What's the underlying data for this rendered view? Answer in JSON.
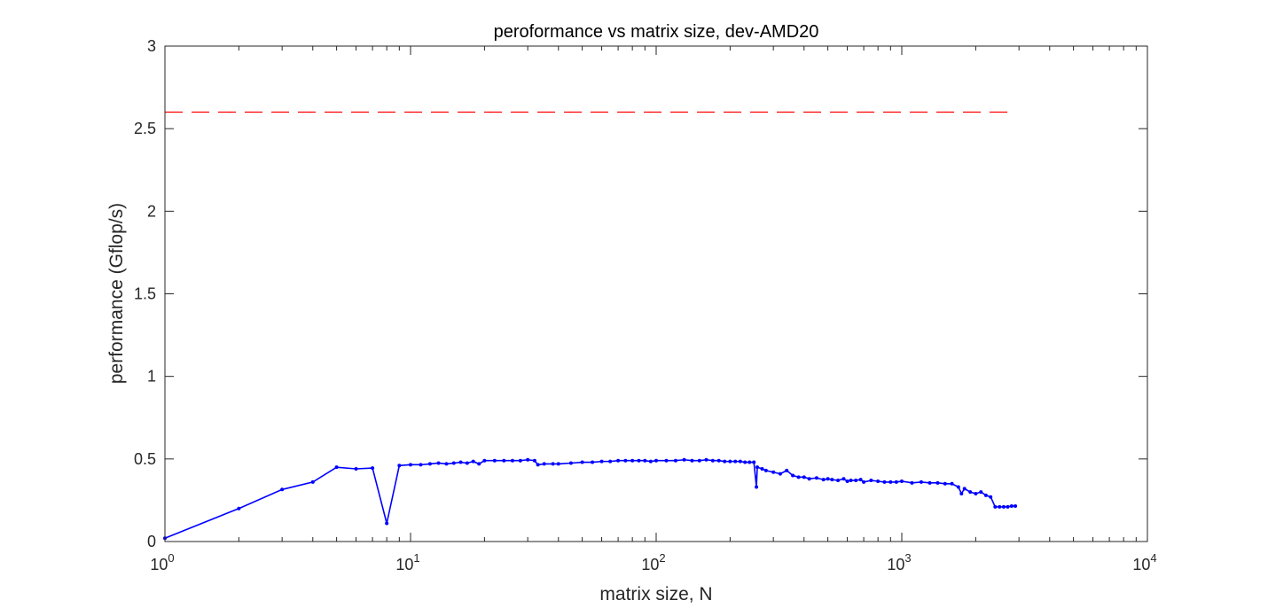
{
  "chart_data": {
    "type": "line",
    "title": "peroformance vs matrix size, dev-AMD20",
    "xlabel": "matrix size, N",
    "ylabel": "performance (Gflop/s)",
    "xscale": "log",
    "xlim": [
      1,
      10000
    ],
    "ylim": [
      0,
      3
    ],
    "x_ticks": [
      {
        "value": 1,
        "base": "10",
        "exp": "0"
      },
      {
        "value": 10,
        "base": "10",
        "exp": "1"
      },
      {
        "value": 100,
        "base": "10",
        "exp": "2"
      },
      {
        "value": 1000,
        "base": "10",
        "exp": "3"
      },
      {
        "value": 10000,
        "base": "10",
        "exp": "4"
      }
    ],
    "y_ticks": [
      {
        "value": 0,
        "label": "0"
      },
      {
        "value": 0.5,
        "label": "0.5"
      },
      {
        "value": 1,
        "label": "1"
      },
      {
        "value": 1.5,
        "label": "1.5"
      },
      {
        "value": 2,
        "label": "2"
      },
      {
        "value": 2.5,
        "label": "2.5"
      },
      {
        "value": 3,
        "label": "3"
      }
    ],
    "grid": false,
    "box": true,
    "series": [
      {
        "style": "solid line with point markers",
        "color": "#0000ff",
        "x": [
          1,
          2,
          3,
          4,
          5,
          6,
          7,
          8,
          9,
          10,
          11,
          12,
          13,
          14,
          15,
          16,
          17,
          18,
          19,
          20,
          22,
          24,
          26,
          28,
          30,
          32,
          33,
          35,
          38,
          40,
          45,
          50,
          55,
          60,
          65,
          70,
          75,
          80,
          85,
          90,
          95,
          100,
          110,
          120,
          130,
          140,
          150,
          160,
          170,
          180,
          190,
          200,
          210,
          220,
          230,
          240,
          250,
          256,
          258,
          270,
          280,
          300,
          320,
          340,
          360,
          380,
          400,
          420,
          450,
          480,
          500,
          520,
          550,
          580,
          600,
          620,
          650,
          680,
          700,
          750,
          800,
          850,
          900,
          950,
          1000,
          1100,
          1200,
          1300,
          1400,
          1500,
          1600,
          1700,
          1750,
          1800,
          1900,
          2000,
          2100,
          2200,
          2300,
          2400,
          2500,
          2600,
          2700,
          2800,
          2900
        ],
        "y": [
          0.02,
          0.2,
          0.315,
          0.36,
          0.45,
          0.44,
          0.445,
          0.11,
          0.46,
          0.465,
          0.465,
          0.47,
          0.475,
          0.47,
          0.475,
          0.48,
          0.475,
          0.485,
          0.47,
          0.49,
          0.49,
          0.49,
          0.49,
          0.49,
          0.495,
          0.49,
          0.465,
          0.47,
          0.47,
          0.47,
          0.475,
          0.48,
          0.48,
          0.485,
          0.485,
          0.49,
          0.49,
          0.49,
          0.49,
          0.49,
          0.485,
          0.49,
          0.49,
          0.49,
          0.495,
          0.49,
          0.49,
          0.495,
          0.49,
          0.49,
          0.485,
          0.485,
          0.485,
          0.485,
          0.48,
          0.48,
          0.48,
          0.33,
          0.45,
          0.44,
          0.43,
          0.42,
          0.41,
          0.43,
          0.4,
          0.39,
          0.39,
          0.38,
          0.385,
          0.375,
          0.38,
          0.375,
          0.37,
          0.38,
          0.365,
          0.37,
          0.37,
          0.375,
          0.36,
          0.37,
          0.365,
          0.36,
          0.36,
          0.36,
          0.365,
          0.355,
          0.36,
          0.355,
          0.355,
          0.35,
          0.35,
          0.33,
          0.29,
          0.32,
          0.3,
          0.29,
          0.3,
          0.28,
          0.27,
          0.21,
          0.21,
          0.21,
          0.21,
          0.215,
          0.215
        ]
      },
      {
        "style": "dashed line",
        "color": "#ff0000",
        "x": [
          1,
          2900
        ],
        "y": [
          2.6,
          2.6
        ]
      }
    ]
  }
}
